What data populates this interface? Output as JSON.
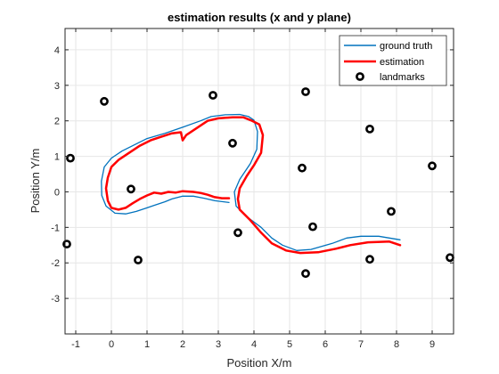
{
  "chart_data": {
    "type": "line",
    "title": "estimation results (x and y plane)",
    "xlabel": "Position X/m",
    "ylabel": "Position Y/m",
    "xlim": [
      -1.3,
      9.6
    ],
    "ylim": [
      -4,
      4.6
    ],
    "xticks": [
      "-1",
      "0",
      "1",
      "2",
      "3",
      "4",
      "5",
      "6",
      "7",
      "8",
      "9"
    ],
    "yticks": [
      "4",
      "3",
      "2",
      "1",
      "0",
      "-1",
      "-2",
      "-3"
    ],
    "grid": true,
    "legend_position": "top-right",
    "series": [
      {
        "name": "ground truth",
        "style": "line",
        "color": "#0072BD",
        "points": [
          [
            3.3,
            -0.3
          ],
          [
            2.9,
            -0.25
          ],
          [
            2.6,
            -0.18
          ],
          [
            2.3,
            -0.12
          ],
          [
            2.0,
            -0.12
          ],
          [
            1.7,
            -0.2
          ],
          [
            1.5,
            -0.28
          ],
          [
            1.2,
            -0.38
          ],
          [
            1.0,
            -0.45
          ],
          [
            0.7,
            -0.55
          ],
          [
            0.4,
            -0.62
          ],
          [
            0.1,
            -0.6
          ],
          [
            -0.15,
            -0.4
          ],
          [
            -0.27,
            -0.1
          ],
          [
            -0.28,
            0.3
          ],
          [
            -0.2,
            0.7
          ],
          [
            0.0,
            0.95
          ],
          [
            0.3,
            1.15
          ],
          [
            0.7,
            1.35
          ],
          [
            1.0,
            1.5
          ],
          [
            1.5,
            1.65
          ],
          [
            2.0,
            1.82
          ],
          [
            2.5,
            2.0
          ],
          [
            2.8,
            2.12
          ],
          [
            3.2,
            2.17
          ],
          [
            3.6,
            2.18
          ],
          [
            3.85,
            2.12
          ],
          [
            4.0,
            2.02
          ],
          [
            4.1,
            1.7
          ],
          [
            4.08,
            1.2
          ],
          [
            3.9,
            0.8
          ],
          [
            3.6,
            0.35
          ],
          [
            3.45,
            0.0
          ],
          [
            3.5,
            -0.4
          ],
          [
            3.8,
            -0.7
          ],
          [
            4.2,
            -1.0
          ],
          [
            4.5,
            -1.3
          ],
          [
            4.8,
            -1.5
          ],
          [
            5.2,
            -1.65
          ],
          [
            5.6,
            -1.62
          ],
          [
            6.2,
            -1.45
          ],
          [
            6.6,
            -1.3
          ],
          [
            7.0,
            -1.25
          ],
          [
            7.5,
            -1.25
          ],
          [
            8.1,
            -1.35
          ]
        ]
      },
      {
        "name": "estimation",
        "style": "line",
        "color": "#FF0000",
        "points": [
          [
            3.3,
            -0.18
          ],
          [
            3.1,
            -0.18
          ],
          [
            2.9,
            -0.15
          ],
          [
            2.7,
            -0.08
          ],
          [
            2.5,
            -0.03
          ],
          [
            2.3,
            0.0
          ],
          [
            2.0,
            0.02
          ],
          [
            1.8,
            -0.02
          ],
          [
            1.6,
            0.0
          ],
          [
            1.4,
            -0.05
          ],
          [
            1.2,
            -0.02
          ],
          [
            1.0,
            -0.1
          ],
          [
            0.8,
            -0.2
          ],
          [
            0.6,
            -0.32
          ],
          [
            0.4,
            -0.45
          ],
          [
            0.2,
            -0.5
          ],
          [
            0.0,
            -0.45
          ],
          [
            -0.1,
            -0.25
          ],
          [
            -0.15,
            0.1
          ],
          [
            -0.1,
            0.4
          ],
          [
            0.0,
            0.7
          ],
          [
            0.2,
            0.9
          ],
          [
            0.5,
            1.1
          ],
          [
            0.8,
            1.3
          ],
          [
            1.1,
            1.45
          ],
          [
            1.4,
            1.55
          ],
          [
            1.7,
            1.65
          ],
          [
            1.95,
            1.68
          ],
          [
            2.0,
            1.45
          ],
          [
            2.1,
            1.6
          ],
          [
            2.4,
            1.8
          ],
          [
            2.7,
            2.0
          ],
          [
            3.0,
            2.07
          ],
          [
            3.4,
            2.1
          ],
          [
            3.7,
            2.1
          ],
          [
            3.95,
            2.0
          ],
          [
            4.15,
            1.9
          ],
          [
            4.25,
            1.6
          ],
          [
            4.2,
            1.1
          ],
          [
            4.0,
            0.75
          ],
          [
            3.8,
            0.45
          ],
          [
            3.6,
            0.1
          ],
          [
            3.55,
            -0.2
          ],
          [
            3.6,
            -0.5
          ],
          [
            3.9,
            -0.8
          ],
          [
            4.2,
            -1.15
          ],
          [
            4.5,
            -1.45
          ],
          [
            4.9,
            -1.65
          ],
          [
            5.3,
            -1.72
          ],
          [
            5.8,
            -1.7
          ],
          [
            6.3,
            -1.6
          ],
          [
            6.7,
            -1.5
          ],
          [
            7.2,
            -1.42
          ],
          [
            7.8,
            -1.4
          ],
          [
            8.1,
            -1.5
          ]
        ]
      },
      {
        "name": "landmarks",
        "style": "marker",
        "color": "#000000",
        "points": [
          [
            -0.2,
            2.55
          ],
          [
            2.85,
            2.72
          ],
          [
            5.45,
            2.82
          ],
          [
            -1.15,
            0.95
          ],
          [
            0.55,
            0.08
          ],
          [
            3.4,
            1.37
          ],
          [
            5.35,
            0.67
          ],
          [
            7.25,
            1.77
          ],
          [
            9.0,
            0.73
          ],
          [
            -1.25,
            -1.47
          ],
          [
            0.75,
            -1.92
          ],
          [
            3.55,
            -1.15
          ],
          [
            5.65,
            -0.98
          ],
          [
            7.85,
            -0.55
          ],
          [
            7.25,
            -1.9
          ],
          [
            5.45,
            -2.3
          ],
          [
            9.5,
            -1.85
          ]
        ]
      }
    ]
  }
}
